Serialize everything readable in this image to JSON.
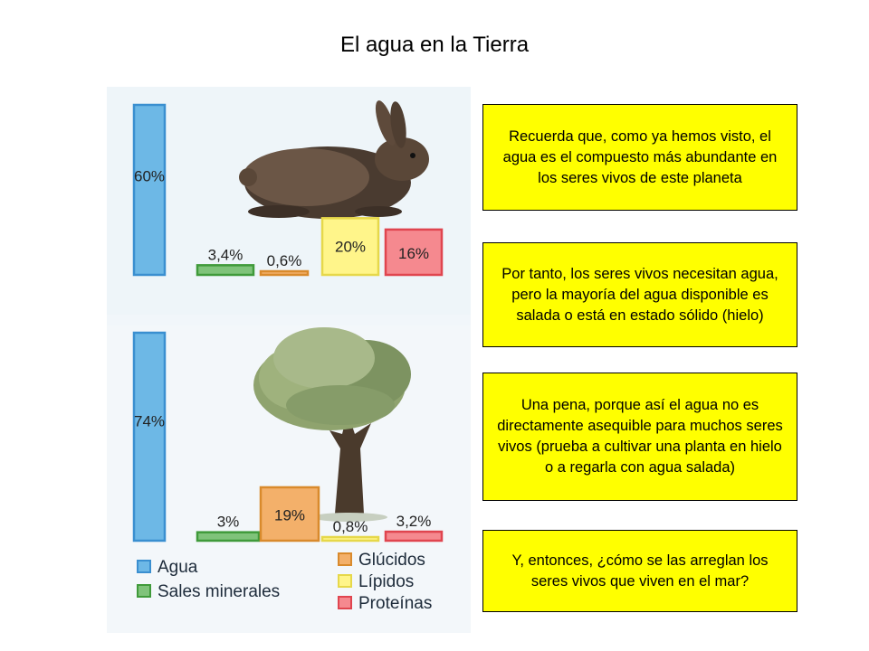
{
  "page": {
    "title": "El agua en la Tierra"
  },
  "chart_data": [
    {
      "type": "bar",
      "categories": [
        "Agua",
        "Sales minerales",
        "Glúcidos",
        "Lípidos",
        "Proteínas"
      ],
      "values": [
        60,
        3.4,
        0.6,
        20,
        16
      ],
      "value_labels": [
        "60%",
        "3,4%",
        "0,6%",
        "20%",
        "16%"
      ],
      "ylim": [
        0,
        60
      ],
      "colors": [
        "#6db8e6",
        "#7fc37a",
        "#f3b06a",
        "#fff58a",
        "#f5898f"
      ],
      "image": "rabbit"
    },
    {
      "type": "bar",
      "categories": [
        "Agua",
        "Sales minerales",
        "Glúcidos",
        "Lípidos",
        "Proteínas"
      ],
      "values": [
        74,
        3,
        19,
        0.8,
        3.2
      ],
      "value_labels": [
        "74%",
        "3%",
        "19%",
        "0,8%",
        "3,2%"
      ],
      "ylim": [
        0,
        74
      ],
      "colors": [
        "#6db8e6",
        "#7fc37a",
        "#f3b06a",
        "#fff58a",
        "#f5898f"
      ],
      "image": "olive-tree"
    }
  ],
  "legend": {
    "left": [
      {
        "label": "Agua",
        "color": "#6db8e6"
      },
      {
        "label": "Sales minerales",
        "color": "#7fc37a"
      }
    ],
    "right": [
      {
        "label": "Glúcidos",
        "color": "#f3b06a"
      },
      {
        "label": "Lípidos",
        "color": "#fff58a"
      },
      {
        "label": "Proteínas",
        "color": "#f5898f"
      }
    ]
  },
  "notes": [
    {
      "text": "Recuerda que, como ya hemos visto, el agua es el compuesto más abundante en los seres vivos de este planeta"
    },
    {
      "text": "Por tanto, los seres vivos necesitan agua, pero la mayoría del agua disponible es salada o está en estado sólido (hielo)"
    },
    {
      "text": "Una pena, porque así el agua no es directamente asequible para muchos seres vivos (prueba a cultivar una planta en hielo o a regarla con agua salada)"
    },
    {
      "text": "Y, entonces, ¿cómo se las arreglan los seres vivos que viven en el mar?"
    }
  ],
  "colors": {
    "note_background": "#ffff00",
    "bar_stroke_blue": "#3a8fd0"
  }
}
